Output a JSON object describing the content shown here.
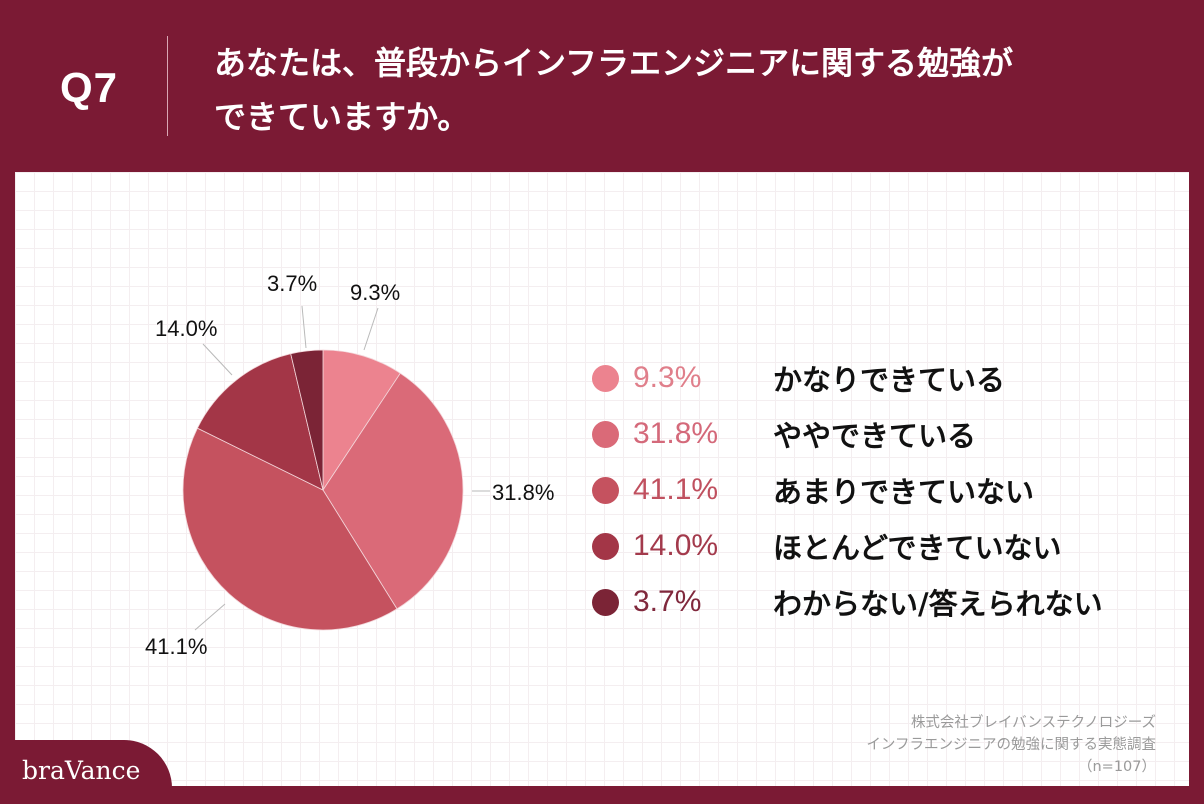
{
  "header": {
    "question_number": "Q7",
    "question_line1": "あなたは、普段からインフラエンジニアに関する勉強が",
    "question_line2": "できていますか。"
  },
  "chart_data": {
    "type": "pie",
    "title": "あなたは、普段からインフラエンジニアに関する勉強ができていますか。",
    "categories": [
      "かなりできている",
      "ややできている",
      "あまりできていない",
      "ほとんどできていない",
      "わからない/答えられない"
    ],
    "values": [
      9.3,
      31.8,
      41.1,
      14.0,
      3.7
    ],
    "labels": [
      "9.3%",
      "31.8%",
      "41.1%",
      "14.0%",
      "3.7%"
    ],
    "colors": [
      "#ec838f",
      "#da6a78",
      "#c5525f",
      "#a33647",
      "#7b2436"
    ],
    "start_angle": "12 o'clock, clockwise",
    "legend_position": "right"
  },
  "legend": {
    "items": [
      {
        "pct": "9.3%",
        "label": "かなりできている",
        "color": "#ec838f"
      },
      {
        "pct": "31.8%",
        "label": "ややできている",
        "color": "#da6a78"
      },
      {
        "pct": "41.1%",
        "label": "あまりできていない",
        "color": "#c5525f"
      },
      {
        "pct": "14.0%",
        "label": "ほとんどできていない",
        "color": "#a33647"
      },
      {
        "pct": "3.7%",
        "label": "わからない/答えられない",
        "color": "#7b2436"
      }
    ]
  },
  "pie_labels": {
    "s0": "9.3%",
    "s1": "31.8%",
    "s2": "41.1%",
    "s3": "14.0%",
    "s4": "3.7%"
  },
  "source": {
    "line1": "株式会社ブレイバンステクノロジーズ",
    "line2": "インフラエンジニアの勉強に関する実態調査",
    "line3": "（n=107）"
  },
  "brand": {
    "name": "braVance"
  },
  "colors": {
    "brand": "#7b1a34"
  }
}
